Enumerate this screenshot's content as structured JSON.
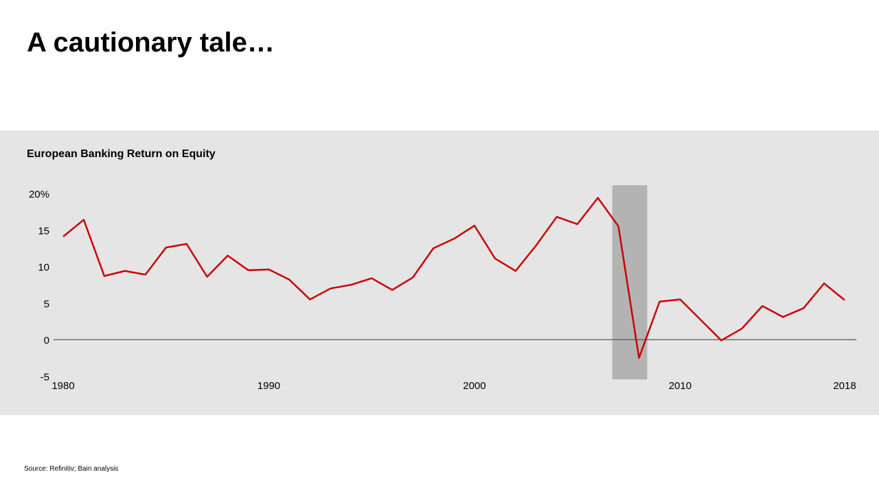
{
  "slide": {
    "title": "A cautionary tale…",
    "source": "Source: Refinitiv; Bain analysis"
  },
  "chart_data": {
    "type": "line",
    "title": "European Banking Return on Equity",
    "xlabel": "",
    "ylabel": "",
    "x": [
      1980,
      1981,
      1982,
      1983,
      1984,
      1985,
      1986,
      1987,
      1988,
      1989,
      1990,
      1991,
      1992,
      1993,
      1994,
      1995,
      1996,
      1997,
      1998,
      1999,
      2000,
      2001,
      2002,
      2003,
      2004,
      2005,
      2006,
      2007,
      2008,
      2009,
      2010,
      2011,
      2012,
      2013,
      2014,
      2015,
      2016,
      2017,
      2018
    ],
    "series": [
      {
        "name": "ROE",
        "color": "#cc0000",
        "values": [
          14.1,
          16.4,
          8.7,
          9.4,
          8.9,
          12.6,
          13.1,
          8.6,
          11.5,
          9.5,
          9.6,
          8.2,
          5.5,
          7.0,
          7.5,
          8.4,
          6.8,
          8.5,
          12.5,
          13.8,
          15.6,
          11.1,
          9.4,
          12.9,
          16.8,
          15.8,
          19.4,
          15.5,
          -2.5,
          5.2,
          5.5,
          2.7,
          -0.1,
          1.5,
          4.6,
          3.1,
          4.3,
          7.7,
          5.4
        ]
      }
    ],
    "xlim": [
      1980,
      2018
    ],
    "ylim": [
      -5,
      20
    ],
    "yticks": [
      "-5",
      "0",
      "5",
      "10",
      "15",
      "20%"
    ],
    "ytick_values": [
      -5,
      0,
      5,
      10,
      15,
      20
    ],
    "xticks": [
      "1980",
      "1990",
      "2000",
      "2010",
      "2018"
    ],
    "xtick_values": [
      1980,
      1990,
      2000,
      2010,
      2018
    ],
    "shaded_region": {
      "from": 2006.7,
      "to": 2008.4,
      "color": "#b3b3b3"
    },
    "grid": false,
    "legend": "none"
  }
}
